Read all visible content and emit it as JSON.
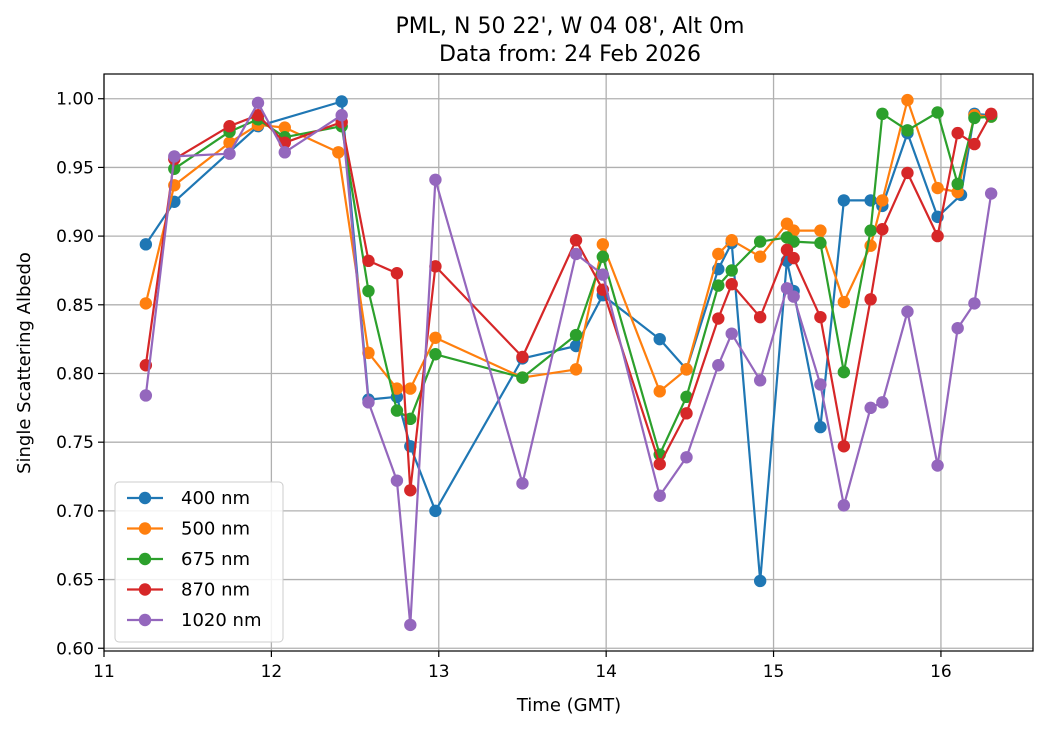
{
  "chart_data": {
    "type": "line",
    "title": "PML, N 50 22', W 04 08', Alt 0m",
    "subtitle": "Data from: 24 Feb 2026",
    "xlabel": "Time (GMT)",
    "ylabel": "Single Scattering Albedo",
    "xlim": [
      11.0,
      16.55
    ],
    "ylim": [
      0.598,
      1.018
    ],
    "xticks": [
      11,
      12,
      13,
      14,
      15,
      16
    ],
    "yticks": [
      0.6,
      0.65,
      0.7,
      0.75,
      0.8,
      0.85,
      0.9,
      0.95,
      1.0
    ],
    "grid": true,
    "legend_position": "lower-left",
    "series": [
      {
        "name": "400 nm",
        "color": "#1f77b4",
        "x": [
          11.25,
          11.42,
          11.92,
          12.42,
          12.58,
          12.75,
          12.83,
          12.98,
          13.5,
          13.82,
          13.98,
          14.32,
          14.48,
          14.67,
          14.75,
          14.92,
          15.08,
          15.12,
          15.28,
          15.42,
          15.58,
          15.65,
          15.8,
          15.98,
          16.12,
          16.2,
          16.3
        ],
        "y": [
          0.894,
          0.925,
          0.98,
          0.998,
          0.781,
          0.783,
          0.747,
          0.7,
          0.811,
          0.82,
          0.857,
          0.825,
          0.803,
          0.876,
          0.895,
          0.649,
          0.882,
          0.86,
          0.761,
          0.926,
          0.926,
          0.922,
          0.975,
          0.914,
          0.93,
          0.989,
          0.988
        ]
      },
      {
        "name": "500 nm",
        "color": "#ff7f0e",
        "x": [
          11.25,
          11.42,
          11.75,
          11.92,
          12.08,
          12.4,
          12.58,
          12.75,
          12.83,
          12.98,
          13.5,
          13.82,
          13.98,
          14.32,
          14.48,
          14.67,
          14.75,
          14.92,
          15.08,
          15.12,
          15.28,
          15.42,
          15.58,
          15.65,
          15.8,
          15.98,
          16.1,
          16.2,
          16.3
        ],
        "y": [
          0.851,
          0.937,
          0.968,
          0.981,
          0.979,
          0.961,
          0.815,
          0.789,
          0.789,
          0.826,
          0.797,
          0.803,
          0.894,
          0.787,
          0.803,
          0.887,
          0.897,
          0.885,
          0.909,
          0.904,
          0.904,
          0.852,
          0.893,
          0.926,
          0.999,
          0.935,
          0.932,
          0.988,
          0.987
        ]
      },
      {
        "name": "675 nm",
        "color": "#2ca02c",
        "x": [
          11.42,
          11.75,
          11.92,
          12.08,
          12.42,
          12.58,
          12.75,
          12.83,
          12.98,
          13.5,
          13.82,
          13.98,
          14.32,
          14.48,
          14.67,
          14.75,
          14.92,
          15.08,
          15.12,
          15.28,
          15.42,
          15.58,
          15.65,
          15.8,
          15.98,
          16.1,
          16.2,
          16.3
        ],
        "y": [
          0.949,
          0.976,
          0.985,
          0.972,
          0.98,
          0.86,
          0.773,
          0.767,
          0.814,
          0.797,
          0.828,
          0.885,
          0.741,
          0.783,
          0.864,
          0.875,
          0.896,
          0.899,
          0.896,
          0.895,
          0.801,
          0.904,
          0.989,
          0.977,
          0.99,
          0.938,
          0.986,
          0.987
        ]
      },
      {
        "name": "870 nm",
        "color": "#d62728",
        "x": [
          11.25,
          11.42,
          11.75,
          11.92,
          12.08,
          12.42,
          12.58,
          12.75,
          12.83,
          12.98,
          13.5,
          13.82,
          13.98,
          14.32,
          14.48,
          14.67,
          14.75,
          14.92,
          15.08,
          15.12,
          15.28,
          15.42,
          15.58,
          15.65,
          15.8,
          15.98,
          16.1,
          16.2,
          16.3
        ],
        "y": [
          0.806,
          0.956,
          0.98,
          0.988,
          0.968,
          0.983,
          0.882,
          0.873,
          0.715,
          0.878,
          0.812,
          0.897,
          0.861,
          0.734,
          0.771,
          0.84,
          0.865,
          0.841,
          0.89,
          0.884,
          0.841,
          0.747,
          0.854,
          0.905,
          0.946,
          0.9,
          0.975,
          0.967,
          0.989
        ]
      },
      {
        "name": "1020 nm",
        "color": "#9467bd",
        "x": [
          11.25,
          11.42,
          11.75,
          11.92,
          12.08,
          12.42,
          12.58,
          12.75,
          12.83,
          12.98,
          13.5,
          13.82,
          13.98,
          14.32,
          14.48,
          14.67,
          14.75,
          14.92,
          15.08,
          15.12,
          15.28,
          15.42,
          15.58,
          15.65,
          15.8,
          15.98,
          16.1,
          16.2,
          16.3
        ],
        "y": [
          0.784,
          0.958,
          0.96,
          0.997,
          0.961,
          0.988,
          0.779,
          0.722,
          0.617,
          0.941,
          0.72,
          0.887,
          0.872,
          0.711,
          0.739,
          0.806,
          0.829,
          0.795,
          0.862,
          0.856,
          0.792,
          0.704,
          0.775,
          0.779,
          0.845,
          0.733,
          0.833,
          0.851,
          0.931
        ]
      }
    ]
  }
}
